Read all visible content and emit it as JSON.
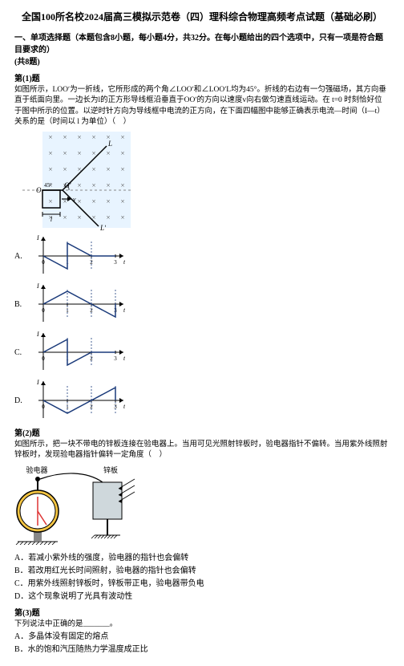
{
  "title": "全国100所名校2024届高三模拟示范卷（四）理科综合物理高频考点试题（基础必刷）",
  "section1": {
    "heading_line1": "一、单项选择题（本题包含8小题，每小题4分，共32分。在每小题给出的四个选项中，只有一项是符合题目要求的）",
    "heading_line2": "(共8题)"
  },
  "q1": {
    "head": "第(1)题",
    "body": "如图所示，LOOʹ为一折线，它所形成的两个角∠LOOʹ和∠LOOʹL均为45°。折线的右边有一匀强磁场，其方向垂直于纸面向里。一边长为l的正方形导线框沿垂直于OOʹ的方向以速度v向右做匀速直线运动。在 t=0 时刻恰好位于图中所示的位置。以逆时针方向为导线框中电流的正方向，在下面四幅图中能够正确表示电流—时间（I—t）关系的是（时间以 l 为单位）（　）",
    "main_fig": {
      "bg": "#ffffff",
      "field_color": "#e8f4ff",
      "cross_color": "#555",
      "line_color": "#000",
      "dash_color": "#888",
      "angle_label": "45°",
      "O_label": "O",
      "Oprime_label": "Oʹ",
      "L_top": "L",
      "L_bottom": "Lʹ",
      "v_label": "v",
      "l_label": "l"
    },
    "options": [
      {
        "letter": "A."
      },
      {
        "letter": "B."
      },
      {
        "letter": "C."
      },
      {
        "letter": "D."
      }
    ],
    "opt_fig": {
      "axis_color": "#000",
      "curve_color": "#1a3a7a",
      "guide_color": "#1a3a7a",
      "x_ticks": [
        "0",
        "1",
        "2",
        "3"
      ],
      "y_label": "I",
      "x_label": "t"
    }
  },
  "q2": {
    "head": "第(2)题",
    "body": "如图所示，把一块不带电的锌板连接在验电器上。当用可见光照射锌板时，验电器指针不偏转。当用紫外线照射锌板时，发现验电器指针偏转一定角度（　）",
    "fig": {
      "label_left": "验电器",
      "label_right": "锌板",
      "body_color": "#f5c542",
      "needle_color": "#d33",
      "plate_color": "#cfd8dc",
      "wire_color": "#000",
      "hatch_color": "#000"
    },
    "choices": [
      "A．若减小紫外线的强度，验电器的指针也会偏转",
      "B．若改用红光长时间照射，验电器的指针也会偏转",
      "C．用紫外线照射锌板时，锌板带正电，验电器带负电",
      "D．这个现象说明了光具有波动性"
    ]
  },
  "q3": {
    "head": "第(3)题",
    "lead": "下列说法中正确的是_______。",
    "choices": [
      "A．多晶体没有固定的熔点",
      "B．水的饱和汽压随热力学温度成正比"
    ]
  }
}
